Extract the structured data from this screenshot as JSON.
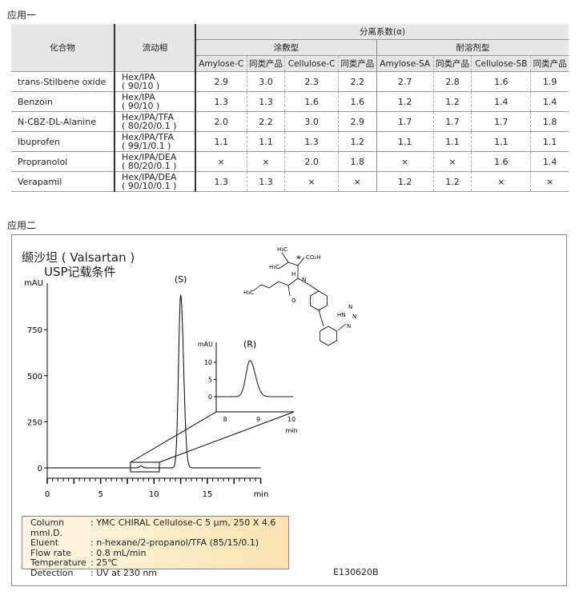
{
  "section1": "应用一",
  "section2": "应用二",
  "table": {
    "h_compound": "化合物",
    "h_mobile": "流动相",
    "h_alpha": "分离系数(α)",
    "h_coated": "涂敷型",
    "h_immob": "耐溶剂型",
    "columns": [
      "Amylose-C",
      "同类产品",
      "Cellulose-C",
      "同类产品",
      "Amylose-SA",
      "同类产品",
      "Cellulose-SB",
      "同类产品"
    ],
    "rows": [
      {
        "compound": "trans-Stilbene oxide",
        "mp1": "Hex/IPA",
        "mp2": "( 90/10 )",
        "v": [
          "2.9",
          "3.0",
          "2.3",
          "2.2",
          "2.7",
          "2.8",
          "1.6",
          "1.9"
        ]
      },
      {
        "compound": "Benzoin",
        "mp1": "Hex/IPA",
        "mp2": "( 90/10 )",
        "v": [
          "1.3",
          "1.3",
          "1.6",
          "1.6",
          "1.2",
          "1.2",
          "1.4",
          "1.4"
        ]
      },
      {
        "compound": "N-CBZ-DL-Alanine",
        "mp1": "Hex/IPA/TFA",
        "mp2": "( 80/20/0.1 )",
        "v": [
          "2.0",
          "2.2",
          "3.0",
          "2.9",
          "1.7",
          "1.7",
          "1.7",
          "1.8"
        ]
      },
      {
        "compound": "Ibuprofen",
        "mp1": "Hex/IPA/TFA",
        "mp2": "( 99/1/0.1 )",
        "v": [
          "1.1",
          "1.1",
          "1.3",
          "1.2",
          "1.1",
          "1.1",
          "1.1",
          "1.1"
        ]
      },
      {
        "compound": "Propranolol",
        "mp1": "Hex/IPA/DEA",
        "mp2": "( 80/20/0.1 )",
        "v": [
          "×",
          "×",
          "2.0",
          "1.8",
          "×",
          "×",
          "1.6",
          "1.4"
        ]
      },
      {
        "compound": "Verapamil",
        "mp1": "Hex/IPA/DEA",
        "mp2": "( 90/10/0.1 )",
        "v": [
          "1.3",
          "1.3",
          "×",
          "×",
          "1.2",
          "1.2",
          "×",
          "×"
        ]
      }
    ]
  },
  "figure": {
    "title1": "缬沙坦 ( Valsartan )",
    "title2": "USP记载条件",
    "code": "E130620B",
    "structure_labels": [
      "H₃C",
      "H₃C",
      "H",
      "CO₂H",
      "*",
      "N",
      "O",
      "H₃C",
      "HN",
      "N",
      "N",
      "N"
    ],
    "conditions": [
      [
        "Column",
        ": YMC CHIRAL Cellulose-C 5 μm, 250 X 4.6 mmI.D."
      ],
      [
        "Eluent",
        ": n-hexane/2-propanol/TFA (85/15/0.1)"
      ],
      [
        "Flow rate",
        ": 0.8 mL/min"
      ],
      [
        "Temperature",
        ": 25℃"
      ],
      [
        "Detection",
        ": UV at 230 nm"
      ]
    ]
  },
  "chart_data": [
    {
      "type": "line",
      "ylabel": "mAU",
      "xlabel": "min",
      "xlim": [
        0,
        20
      ],
      "ylim": [
        0,
        1000
      ],
      "xticks": [
        0,
        5,
        10,
        15
      ],
      "yticks": [
        0,
        250,
        500,
        750
      ],
      "peaks": [
        {
          "label": "(S)",
          "rt": 12.5,
          "height": 935
        },
        {
          "rt": 8.75,
          "height": 10.5
        }
      ],
      "zoom_box": {
        "x": [
          7.8,
          10.5
        ]
      }
    },
    {
      "type": "line",
      "ylabel": "mAU",
      "xlabel": "min",
      "xlim": [
        7.75,
        10.05
      ],
      "ylim": [
        -4,
        15
      ],
      "xticks": [
        8,
        9,
        10
      ],
      "yticks": [
        0,
        5,
        10
      ],
      "peaks": [
        {
          "label": "(R)",
          "rt": 8.75,
          "height": 10.5
        }
      ]
    }
  ]
}
